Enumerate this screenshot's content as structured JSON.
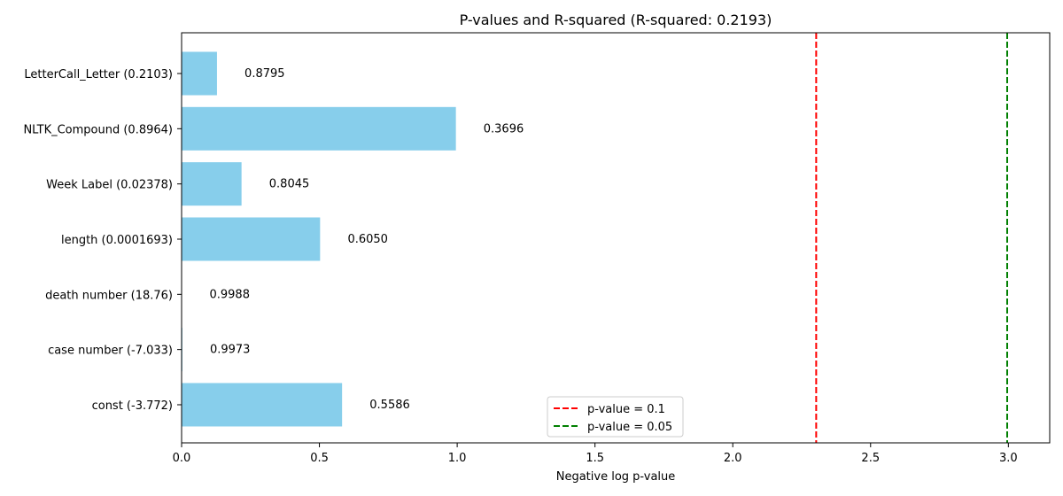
{
  "chart_data": {
    "type": "bar",
    "orientation": "horizontal",
    "title": "P-values and R-squared (R-squared: 0.2193)",
    "xlabel": "Negative log p-value",
    "ylabel": "",
    "xlim": [
      0,
      3.15
    ],
    "xticks": [
      0.0,
      0.5,
      1.0,
      1.5,
      2.0,
      2.5,
      3.0
    ],
    "xtick_labels": [
      "0.0",
      "0.5",
      "1.0",
      "1.5",
      "2.0",
      "2.5",
      "3.0"
    ],
    "bar_color": "#87ceeb",
    "categories": [
      "LetterCall_Letter (0.2103)",
      "NLTK_Compound (0.8964)",
      "Week Label (0.02378)",
      "length (0.0001693)",
      "death number (18.76)",
      "case number (-7.033)",
      "const (-3.772)"
    ],
    "values": [
      0.1284,
      0.9953,
      0.2175,
      0.5025,
      0.0012,
      0.0027,
      0.5823
    ],
    "bar_labels": [
      "0.8795",
      "0.3696",
      "0.8045",
      "0.6050",
      "0.9988",
      "0.9973",
      "0.5586"
    ],
    "reference_lines": [
      {
        "x": 2.3026,
        "color": "#ff0000",
        "label": "p-value = 0.1"
      },
      {
        "x": 2.9957,
        "color": "#008000",
        "label": "p-value = 0.05"
      }
    ],
    "legend_position": "lower-center",
    "grid": false
  }
}
